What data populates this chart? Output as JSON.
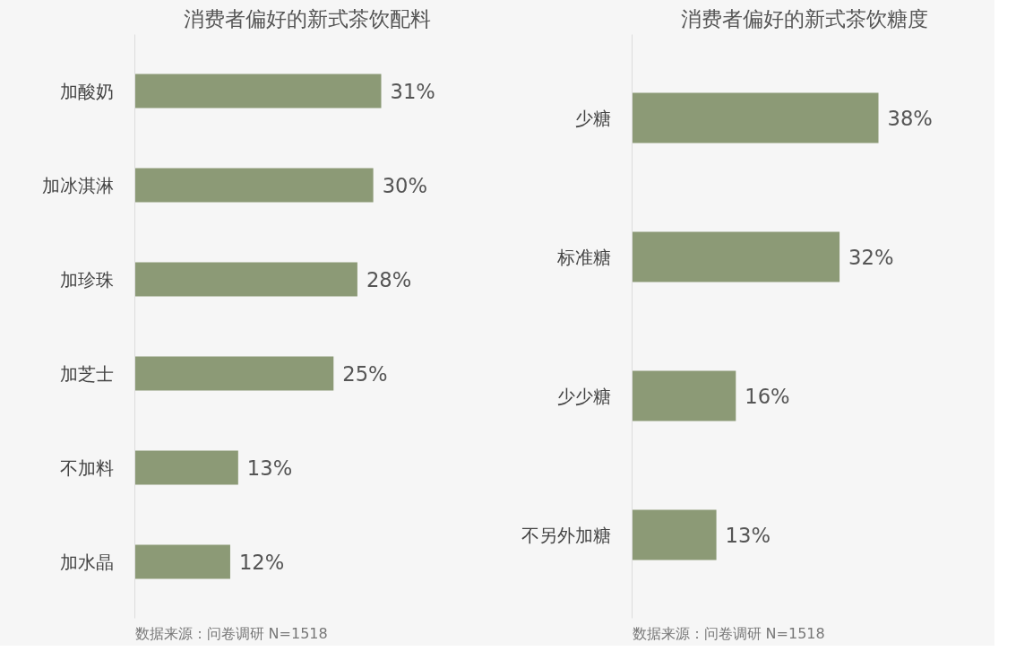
{
  "chart_data": [
    {
      "type": "bar",
      "orientation": "horizontal",
      "title": "消费者偏好的新式茶饮配料",
      "categories": [
        "加酸奶",
        "加冰淇淋",
        "加珍珠",
        "加芝士",
        "不加料",
        "加水晶"
      ],
      "values": [
        31,
        30,
        28,
        25,
        13,
        12
      ],
      "value_labels": [
        "31%",
        "30%",
        "28%",
        "25%",
        "13%",
        "12%"
      ],
      "color": "#8c9a76",
      "annotations": [
        "数据来源：问卷调研 N=1518"
      ]
    },
    {
      "type": "bar",
      "orientation": "horizontal",
      "title": "消费者偏好的新式茶饮糖度",
      "categories": [
        "少糖",
        "标准糖",
        "少少糖",
        "不另外加糖"
      ],
      "values": [
        38,
        32,
        16,
        13
      ],
      "value_labels": [
        "38%",
        "32%",
        "16%",
        "13%"
      ],
      "color": "#8c9a76",
      "annotations": [
        "数据来源：问卷调研 N=1518"
      ]
    }
  ]
}
